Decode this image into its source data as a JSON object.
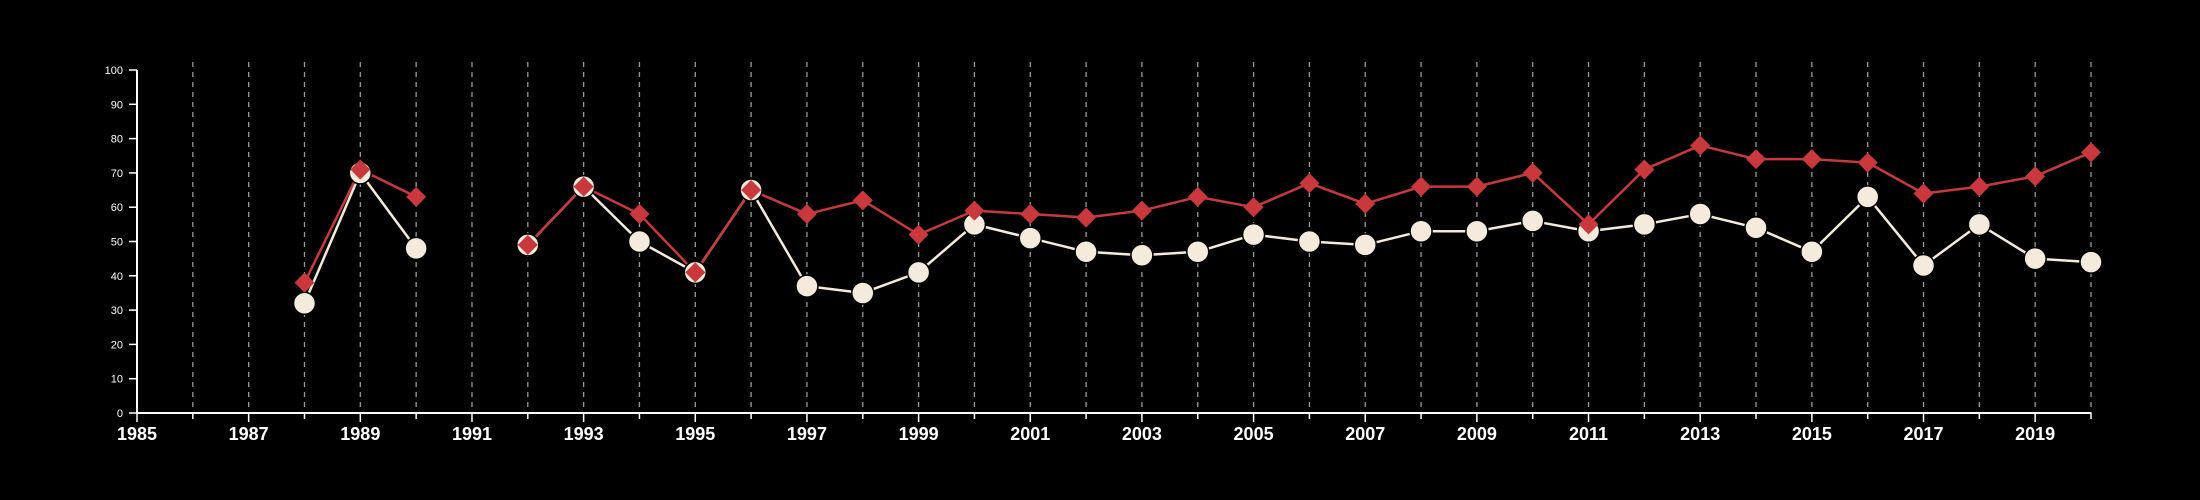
{
  "chart_data": {
    "type": "line",
    "title": "",
    "xlabel": "",
    "ylabel": "",
    "xlim": [
      1985,
      2020
    ],
    "ylim": [
      0,
      100
    ],
    "y_ticks": [
      0,
      10,
      20,
      30,
      40,
      50,
      60,
      70,
      80,
      90,
      100
    ],
    "x_tick_labels": [
      "1985",
      "1987",
      "1989",
      "1991",
      "1993",
      "1995",
      "1997",
      "1999",
      "2001",
      "2003",
      "2005",
      "2007",
      "2009",
      "2011",
      "2013",
      "2015",
      "2017",
      "2019"
    ],
    "grid": "vertical dashed lines at every year",
    "legend": "none",
    "x": [
      1985,
      1986,
      1987,
      1988,
      1989,
      1990,
      1991,
      1992,
      1993,
      1994,
      1995,
      1996,
      1997,
      1998,
      1999,
      2000,
      2001,
      2002,
      2003,
      2004,
      2005,
      2006,
      2007,
      2008,
      2009,
      2010,
      2011,
      2012,
      2013,
      2014,
      2015,
      2016,
      2017,
      2018,
      2019,
      2020
    ],
    "series": [
      {
        "color": "#f5ebdc",
        "marker": "circle",
        "values": [
          null,
          null,
          null,
          32,
          70,
          48,
          null,
          49,
          66,
          50,
          41,
          65,
          37,
          35,
          41,
          55,
          51,
          47,
          46,
          47,
          52,
          50,
          49,
          53,
          53,
          56,
          53,
          55,
          58,
          54,
          47,
          63,
          43,
          55,
          45,
          44
        ]
      },
      {
        "color": "#c8383c",
        "marker": "diamond",
        "values": [
          null,
          null,
          null,
          38,
          71,
          63,
          null,
          49,
          66,
          58,
          41,
          65,
          58,
          62,
          52,
          59,
          58,
          57,
          59,
          63,
          60,
          67,
          61,
          66,
          66,
          70,
          55,
          71,
          78,
          74,
          74,
          73,
          64,
          66,
          69,
          76
        ]
      }
    ]
  }
}
